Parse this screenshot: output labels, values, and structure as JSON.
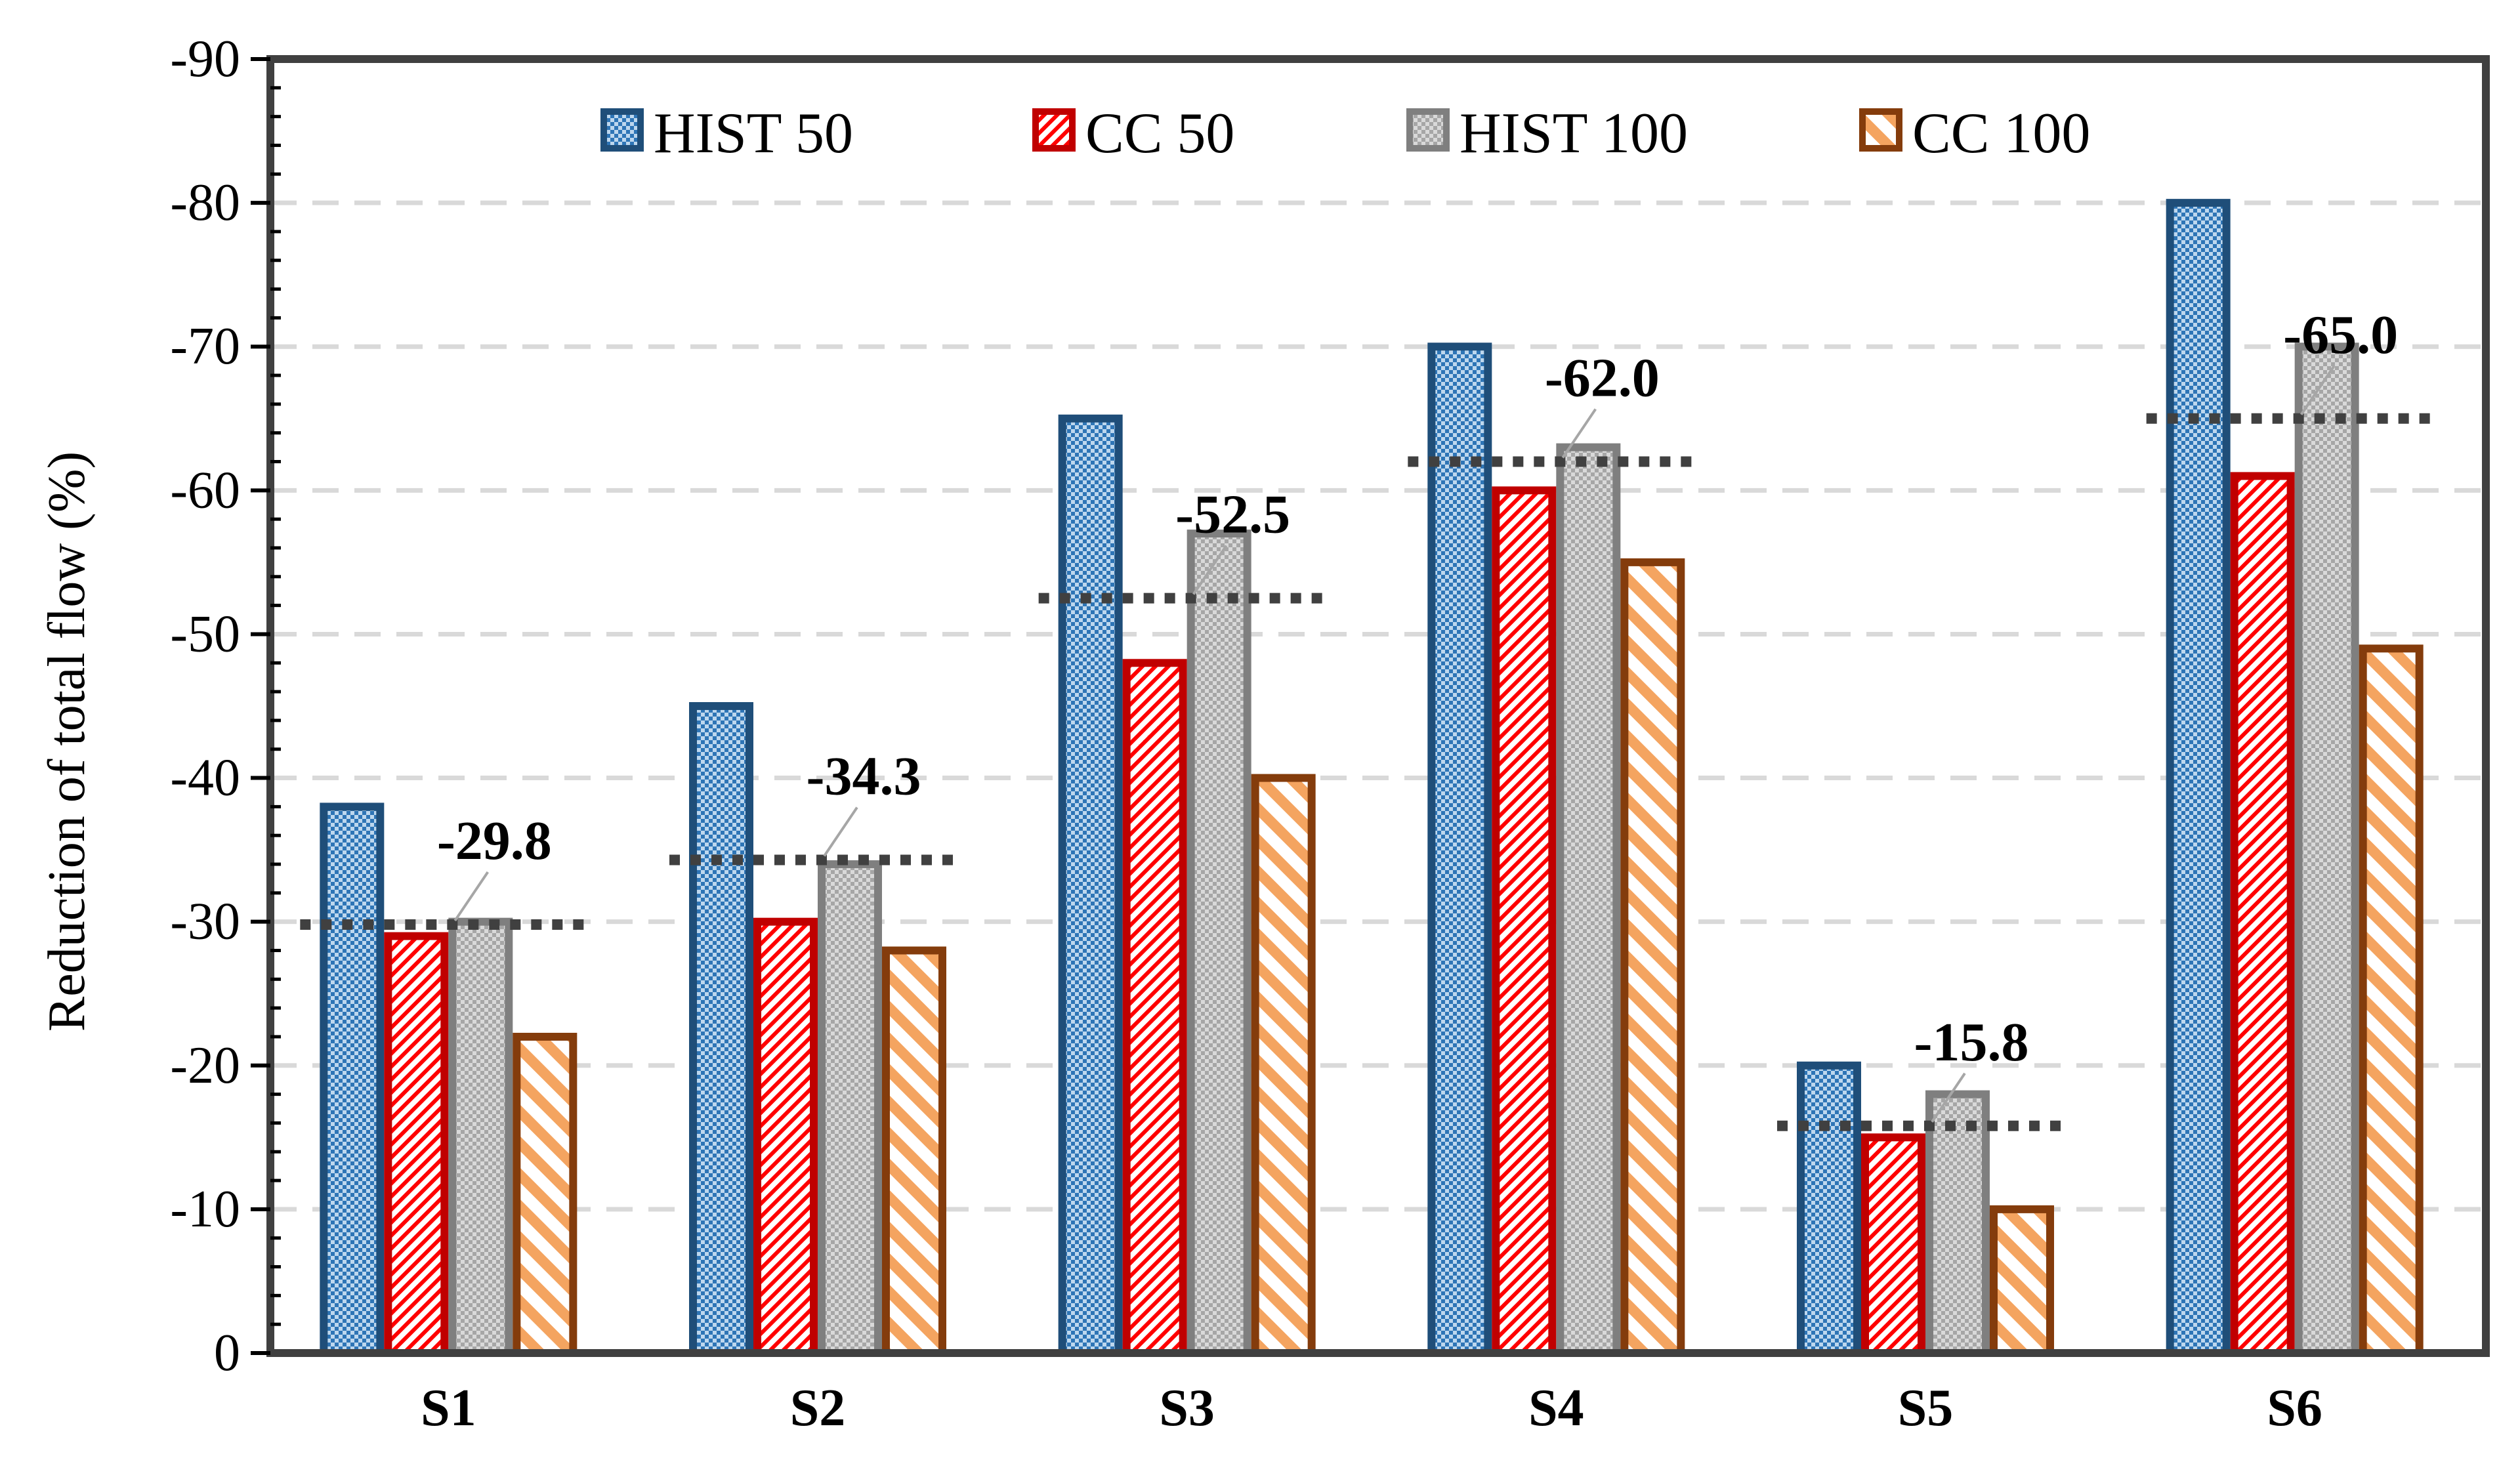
{
  "chart_data": {
    "type": "bar",
    "title": "",
    "xlabel": "",
    "ylabel": "Reduction of total flow (%)",
    "ylim": [
      0,
      -90
    ],
    "yticks": [
      0,
      -10,
      -20,
      -30,
      -40,
      -50,
      -60,
      -70,
      -80,
      -90
    ],
    "ytick_labels": [
      "0",
      "-10",
      "-20",
      "-30",
      "-40",
      "-50",
      "-60",
      "-70",
      "-80",
      "-90"
    ],
    "grid": "horizontal dashed",
    "legend_position": "top",
    "categories": [
      "S1",
      "S2",
      "S3",
      "S4",
      "S5",
      "S6"
    ],
    "series": [
      {
        "name": "HIST 50",
        "values": [
          -38,
          -45,
          -65,
          -70,
          -20,
          -80
        ]
      },
      {
        "name": "CC 50",
        "values": [
          -29,
          -30,
          -48,
          -60,
          -15,
          -61
        ]
      },
      {
        "name": "HIST 100",
        "values": [
          -30,
          -34,
          -57,
          -63,
          -18,
          -70
        ]
      },
      {
        "name": "CC 100",
        "values": [
          -22,
          -28,
          -40,
          -55,
          -10,
          -49
        ]
      }
    ],
    "averages": [
      -29.8,
      -34.3,
      -52.5,
      -62.0,
      -15.8,
      -65.0
    ],
    "average_labels": [
      "-29.8",
      "-34.3",
      "-52.5",
      "-62.0",
      "-15.8",
      "-65.0"
    ]
  },
  "style": {
    "colors": {
      "hist50_stroke": "#1f4e79",
      "hist50_fill": "#bdd7ee",
      "hist50_pattern": "#2e75b6",
      "cc50_stroke": "#c00000",
      "cc50_pattern": "#ff0000",
      "hist100_stroke": "#7f7f7f",
      "hist100_fill": "#d9d9d9",
      "hist100_pattern": "#a6a6a6",
      "cc100_stroke": "#843c0c",
      "cc100_pattern": "#f4a460",
      "avg_line": "#404040",
      "grid": "#d9d9d9",
      "axis": "#404040"
    }
  }
}
